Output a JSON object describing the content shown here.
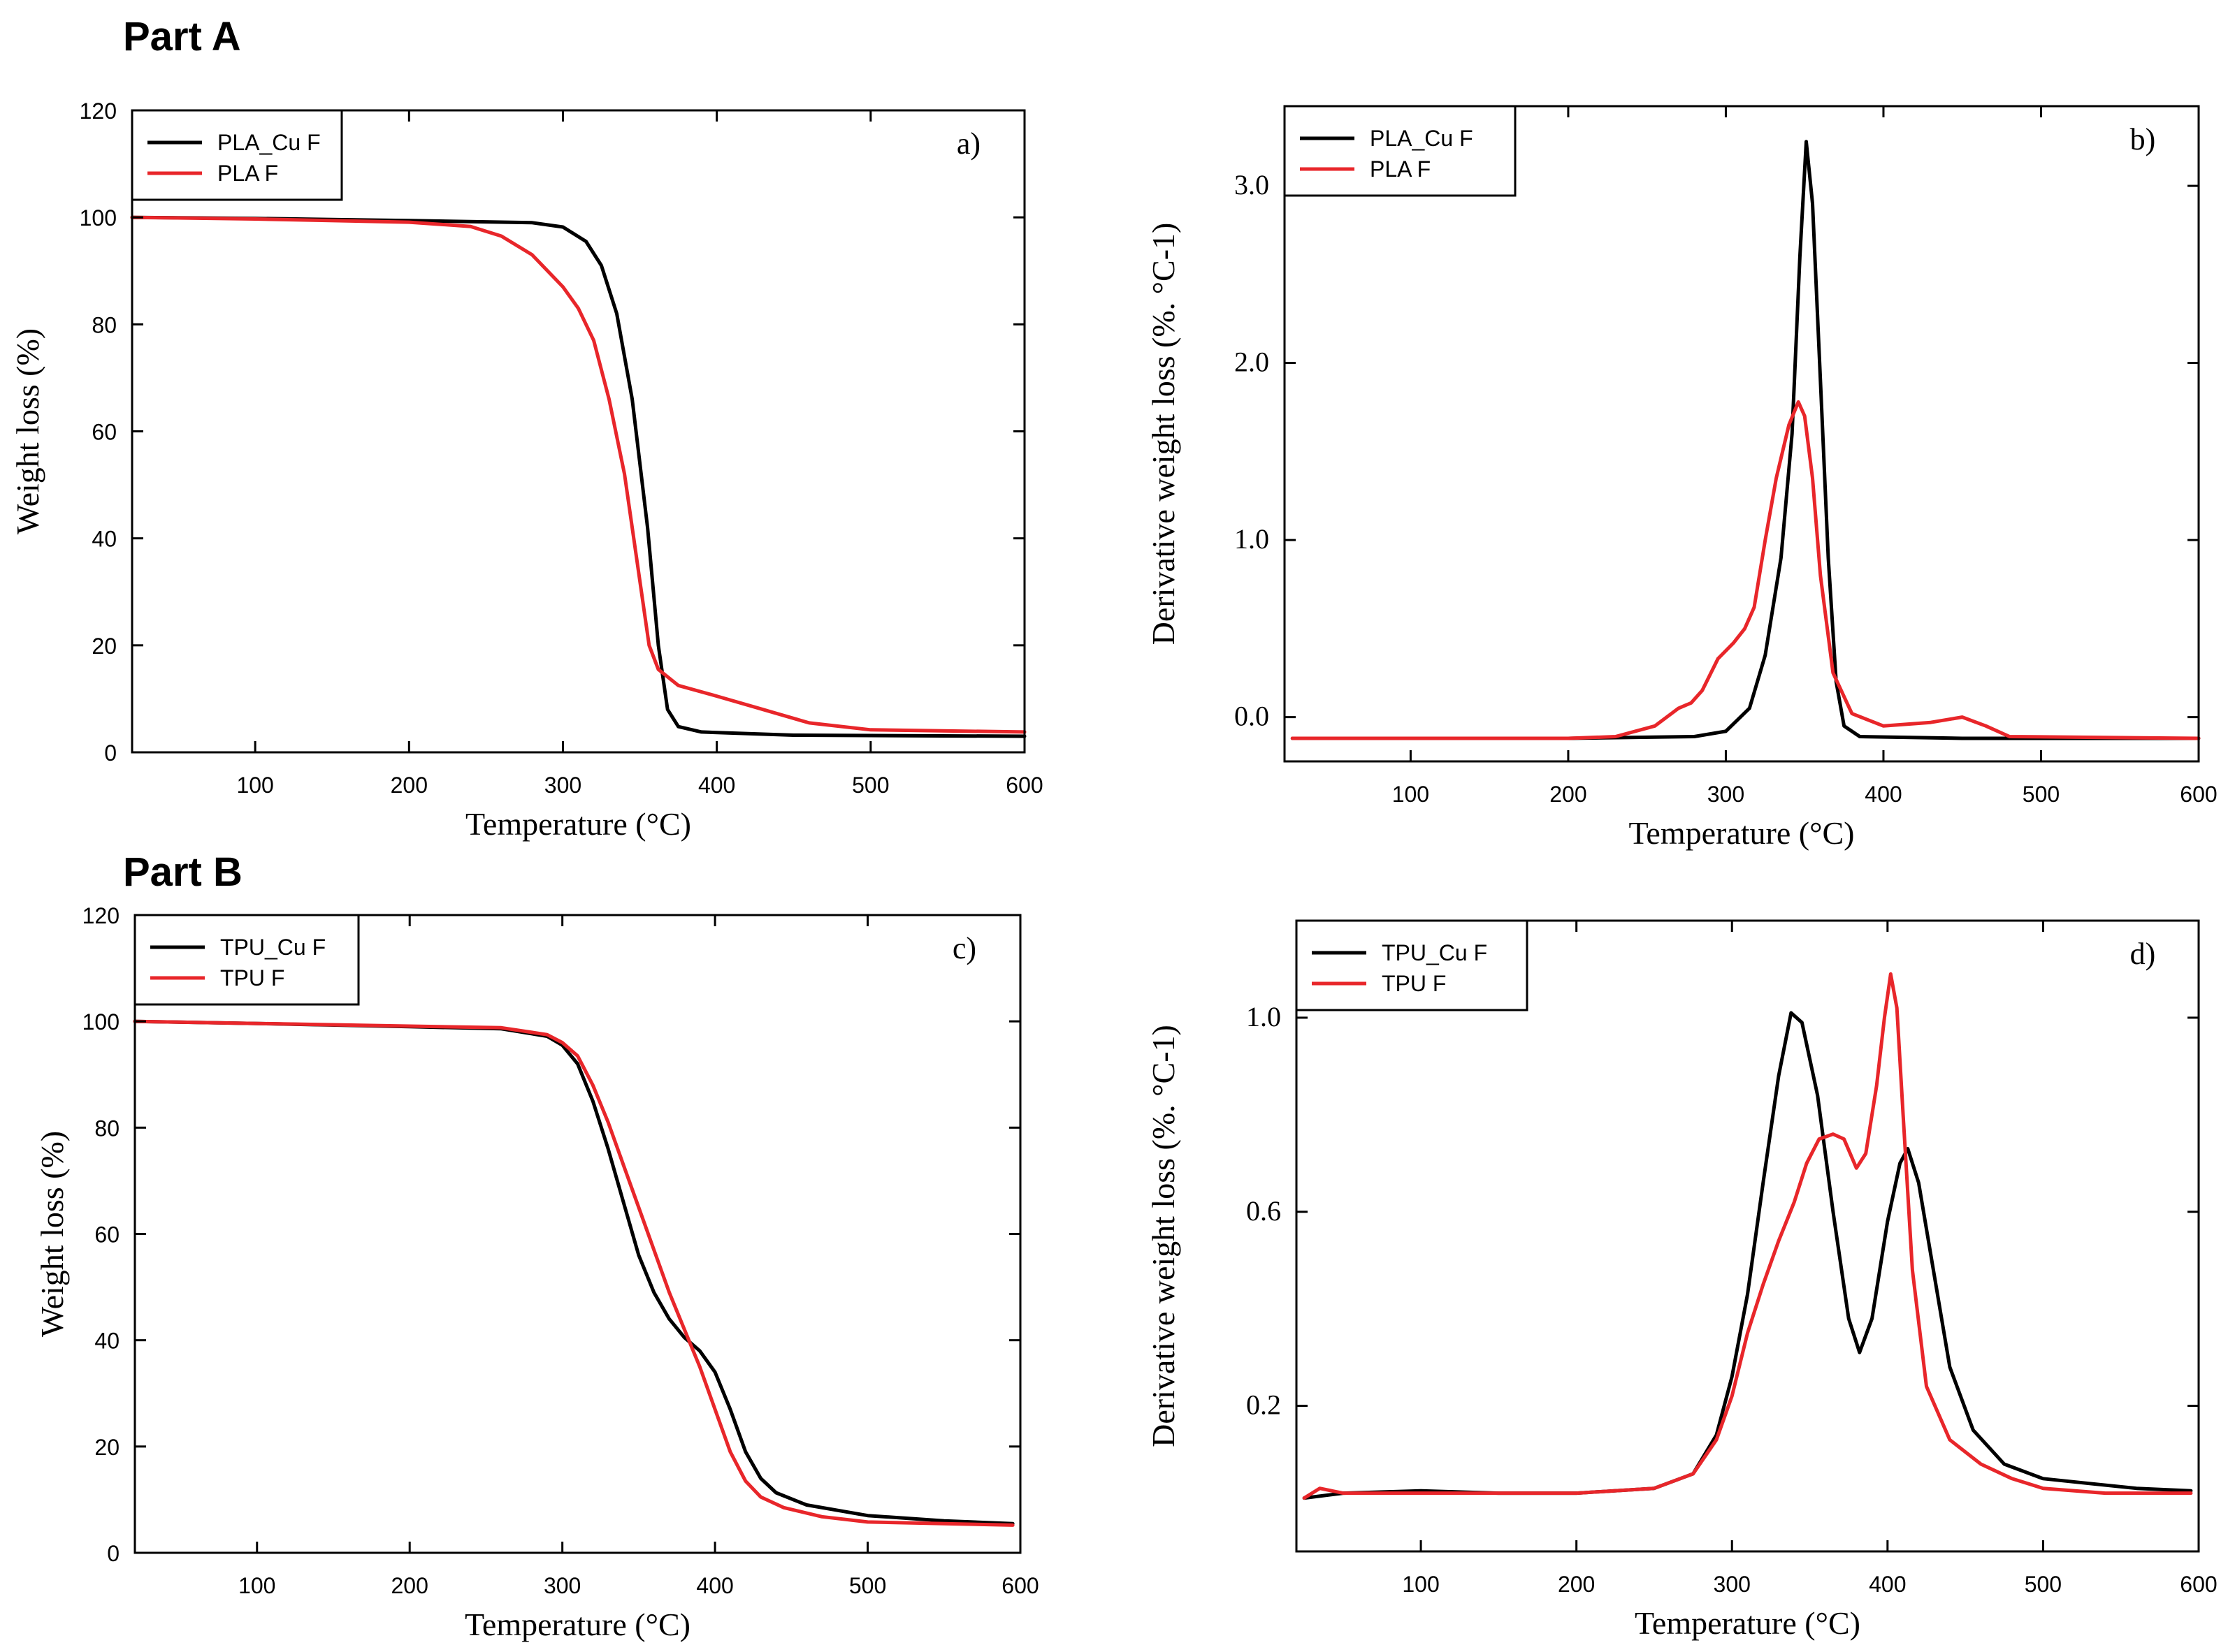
{
  "part_titles": [
    "Part A",
    "Part B"
  ],
  "chart_data": [
    {
      "id": "a",
      "type": "line",
      "panel_label": "a)",
      "xlabel": "Temperature (°C)",
      "ylabel": "Weight loss (%)",
      "xlim": [
        20,
        600
      ],
      "ylim": [
        0,
        120
      ],
      "xticks": [
        100,
        200,
        300,
        400,
        500,
        600
      ],
      "yticks": [
        0,
        20,
        40,
        60,
        80,
        100,
        120
      ],
      "ytick_labels": [
        "0",
        "20",
        "40",
        "60",
        "80",
        "100",
        "120"
      ],
      "legend_position": "top-left",
      "grid": false,
      "series": [
        {
          "name": "PLA_Cu F",
          "color": "#000000",
          "points": [
            [
              20,
              100
            ],
            [
              100,
              99.8
            ],
            [
              200,
              99.4
            ],
            [
              280,
              99.0
            ],
            [
              300,
              98.2
            ],
            [
              315,
              95.5
            ],
            [
              325,
              91
            ],
            [
              335,
              82
            ],
            [
              345,
              66
            ],
            [
              355,
              42
            ],
            [
              362,
              20
            ],
            [
              368,
              8
            ],
            [
              375,
              4.8
            ],
            [
              390,
              3.8
            ],
            [
              450,
              3.2
            ],
            [
              600,
              3.0
            ]
          ]
        },
        {
          "name": "PLA F",
          "color": "#e8262a",
          "points": [
            [
              20,
              100
            ],
            [
              100,
              99.7
            ],
            [
              200,
              99.1
            ],
            [
              240,
              98.3
            ],
            [
              260,
              96.5
            ],
            [
              280,
              93
            ],
            [
              300,
              87
            ],
            [
              310,
              83
            ],
            [
              320,
              77
            ],
            [
              330,
              66
            ],
            [
              340,
              52
            ],
            [
              350,
              32
            ],
            [
              356,
              20
            ],
            [
              362,
              15.5
            ],
            [
              375,
              12.5
            ],
            [
              400,
              10.5
            ],
            [
              430,
              8
            ],
            [
              460,
              5.5
            ],
            [
              500,
              4.2
            ],
            [
              600,
              3.8
            ]
          ]
        }
      ]
    },
    {
      "id": "b",
      "type": "line",
      "panel_label": "b)",
      "xlabel": "Temperature (°C)",
      "ylabel": "Derivative weight loss (%. °C-1)",
      "xlim": [
        20,
        600
      ],
      "ylim": [
        -0.25,
        3.45
      ],
      "xticks": [
        100,
        200,
        300,
        400,
        500,
        600
      ],
      "yticks": [
        0.0,
        1.0,
        2.0,
        3.0
      ],
      "ytick_labels": [
        "0.0",
        "1.0",
        "2.0",
        "3.0"
      ],
      "legend_position": "top-left",
      "grid": false,
      "series": [
        {
          "name": "PLA_Cu F",
          "color": "#000000",
          "points": [
            [
              25,
              -0.12
            ],
            [
              200,
              -0.12
            ],
            [
              280,
              -0.11
            ],
            [
              300,
              -0.08
            ],
            [
              315,
              0.05
            ],
            [
              325,
              0.35
            ],
            [
              335,
              0.9
            ],
            [
              342,
              1.6
            ],
            [
              347,
              2.6
            ],
            [
              351,
              3.25
            ],
            [
              355,
              2.9
            ],
            [
              360,
              1.9
            ],
            [
              365,
              0.9
            ],
            [
              370,
              0.2
            ],
            [
              375,
              -0.05
            ],
            [
              385,
              -0.11
            ],
            [
              450,
              -0.12
            ],
            [
              600,
              -0.12
            ]
          ]
        },
        {
          "name": "PLA F",
          "color": "#e8262a",
          "points": [
            [
              25,
              -0.12
            ],
            [
              200,
              -0.12
            ],
            [
              230,
              -0.11
            ],
            [
              255,
              -0.05
            ],
            [
              270,
              0.05
            ],
            [
              278,
              0.08
            ],
            [
              285,
              0.15
            ],
            [
              295,
              0.33
            ],
            [
              305,
              0.42
            ],
            [
              312,
              0.5
            ],
            [
              318,
              0.62
            ],
            [
              325,
              1.0
            ],
            [
              332,
              1.35
            ],
            [
              340,
              1.65
            ],
            [
              346,
              1.78
            ],
            [
              350,
              1.7
            ],
            [
              355,
              1.35
            ],
            [
              360,
              0.8
            ],
            [
              368,
              0.25
            ],
            [
              380,
              0.02
            ],
            [
              400,
              -0.05
            ],
            [
              430,
              -0.03
            ],
            [
              450,
              0.0
            ],
            [
              465,
              -0.05
            ],
            [
              480,
              -0.11
            ],
            [
              600,
              -0.12
            ]
          ]
        }
      ]
    },
    {
      "id": "c",
      "type": "line",
      "panel_label": "c)",
      "xlabel": "Temperature (°C)",
      "ylabel": "Weight loss (%)",
      "xlim": [
        20,
        600
      ],
      "ylim": [
        0,
        120
      ],
      "xticks": [
        100,
        200,
        300,
        400,
        500,
        600
      ],
      "yticks": [
        0,
        20,
        40,
        60,
        80,
        100,
        120
      ],
      "ytick_labels": [
        "0",
        "20",
        "40",
        "60",
        "80",
        "100",
        "120"
      ],
      "legend_position": "top-left",
      "grid": false,
      "series": [
        {
          "name": "TPU_Cu F",
          "color": "#000000",
          "points": [
            [
              20,
              100
            ],
            [
              100,
              99.6
            ],
            [
              200,
              99.0
            ],
            [
              260,
              98.6
            ],
            [
              290,
              97.2
            ],
            [
              300,
              95.5
            ],
            [
              310,
              92
            ],
            [
              320,
              85
            ],
            [
              330,
              76
            ],
            [
              340,
              66
            ],
            [
              350,
              56
            ],
            [
              360,
              49
            ],
            [
              370,
              44
            ],
            [
              380,
              40.5
            ],
            [
              390,
              38
            ],
            [
              400,
              34
            ],
            [
              410,
              27
            ],
            [
              420,
              19
            ],
            [
              430,
              14
            ],
            [
              440,
              11.3
            ],
            [
              460,
              9
            ],
            [
              500,
              7
            ],
            [
              550,
              6
            ],
            [
              595,
              5.5
            ]
          ]
        },
        {
          "name": "TPU F",
          "color": "#e8262a",
          "points": [
            [
              20,
              100
            ],
            [
              100,
              99.6
            ],
            [
              200,
              99.1
            ],
            [
              260,
              98.8
            ],
            [
              290,
              97.5
            ],
            [
              300,
              96
            ],
            [
              310,
              93.5
            ],
            [
              320,
              88
            ],
            [
              330,
              81
            ],
            [
              340,
              73
            ],
            [
              350,
              65
            ],
            [
              360,
              57
            ],
            [
              370,
              49
            ],
            [
              380,
              42
            ],
            [
              390,
              35
            ],
            [
              400,
              27
            ],
            [
              410,
              19
            ],
            [
              420,
              13.5
            ],
            [
              430,
              10.5
            ],
            [
              445,
              8.5
            ],
            [
              470,
              6.8
            ],
            [
              500,
              5.8
            ],
            [
              595,
              5.2
            ]
          ]
        }
      ]
    },
    {
      "id": "d",
      "type": "line",
      "panel_label": "d)",
      "xlabel": "Temperature (°C)",
      "ylabel": "Derivative weight loss (%. °C-1)",
      "xlim": [
        20,
        600
      ],
      "ylim": [
        -0.1,
        1.2
      ],
      "xticks": [
        100,
        200,
        300,
        400,
        500,
        600
      ],
      "yticks": [
        0.2,
        0.6,
        1.0
      ],
      "ytick_labels": [
        "0.2",
        "0.6",
        "1.0"
      ],
      "legend_position": "top-left",
      "grid": false,
      "series": [
        {
          "name": "TPU_Cu F",
          "color": "#000000",
          "points": [
            [
              25,
              0.01
            ],
            [
              50,
              0.02
            ],
            [
              100,
              0.025
            ],
            [
              150,
              0.02
            ],
            [
              200,
              0.02
            ],
            [
              250,
              0.03
            ],
            [
              275,
              0.06
            ],
            [
              290,
              0.14
            ],
            [
              300,
              0.26
            ],
            [
              310,
              0.43
            ],
            [
              320,
              0.66
            ],
            [
              330,
              0.88
            ],
            [
              338,
              1.01
            ],
            [
              345,
              0.99
            ],
            [
              355,
              0.84
            ],
            [
              365,
              0.6
            ],
            [
              375,
              0.38
            ],
            [
              382,
              0.31
            ],
            [
              390,
              0.38
            ],
            [
              400,
              0.58
            ],
            [
              408,
              0.7
            ],
            [
              413,
              0.73
            ],
            [
              420,
              0.66
            ],
            [
              430,
              0.47
            ],
            [
              440,
              0.28
            ],
            [
              455,
              0.15
            ],
            [
              475,
              0.08
            ],
            [
              500,
              0.05
            ],
            [
              530,
              0.04
            ],
            [
              560,
              0.03
            ],
            [
              595,
              0.025
            ]
          ]
        },
        {
          "name": "TPU F",
          "color": "#e8262a",
          "points": [
            [
              25,
              0.01
            ],
            [
              35,
              0.03
            ],
            [
              50,
              0.02
            ],
            [
              100,
              0.02
            ],
            [
              150,
              0.02
            ],
            [
              200,
              0.02
            ],
            [
              250,
              0.03
            ],
            [
              275,
              0.06
            ],
            [
              290,
              0.13
            ],
            [
              300,
              0.22
            ],
            [
              310,
              0.35
            ],
            [
              320,
              0.45
            ],
            [
              330,
              0.54
            ],
            [
              340,
              0.62
            ],
            [
              348,
              0.7
            ],
            [
              356,
              0.75
            ],
            [
              365,
              0.76
            ],
            [
              372,
              0.75
            ],
            [
              380,
              0.69
            ],
            [
              386,
              0.72
            ],
            [
              393,
              0.86
            ],
            [
              398,
              1.0
            ],
            [
              402,
              1.09
            ],
            [
              406,
              1.02
            ],
            [
              410,
              0.8
            ],
            [
              416,
              0.48
            ],
            [
              425,
              0.24
            ],
            [
              440,
              0.13
            ],
            [
              460,
              0.08
            ],
            [
              480,
              0.05
            ],
            [
              500,
              0.03
            ],
            [
              540,
              0.02
            ],
            [
              595,
              0.02
            ]
          ]
        }
      ]
    }
  ]
}
